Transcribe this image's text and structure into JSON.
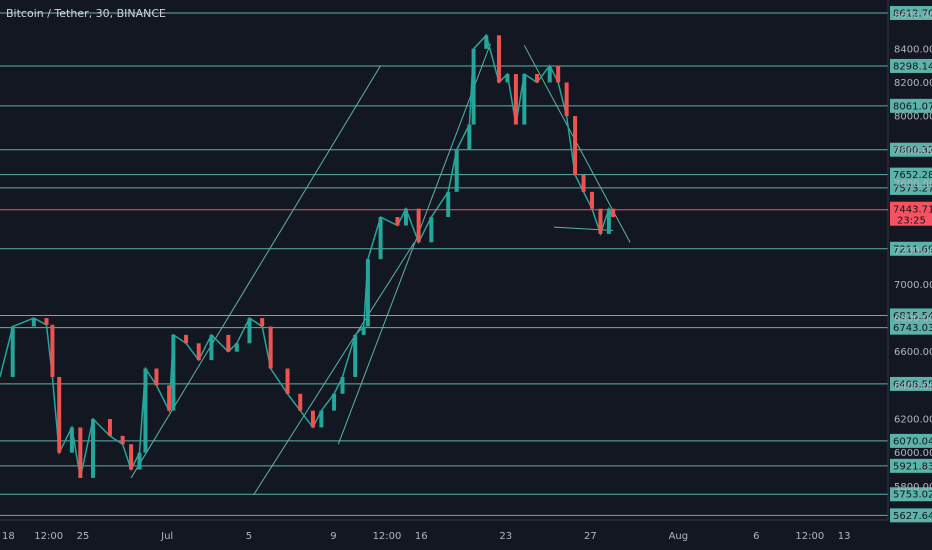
{
  "chart_data": {
    "type": "candlestick",
    "title": "Bitcoin / Tether, 30, BINANCE",
    "current_price": "7443.71",
    "countdown": "23:25",
    "x_ticks": [
      {
        "label": "18",
        "x": 0
      },
      {
        "label": "12:00",
        "x": 0.5
      },
      {
        "label": "25",
        "x": 1
      },
      {
        "label": "Jul",
        "x": 2
      },
      {
        "label": "5",
        "x": 3
      },
      {
        "label": "9",
        "x": 4
      },
      {
        "label": "12:00",
        "x": 4.5
      },
      {
        "label": "16",
        "x": 5
      },
      {
        "label": "23",
        "x": 6
      },
      {
        "label": "27",
        "x": 7
      },
      {
        "label": "Aug",
        "x": 8
      },
      {
        "label": "6",
        "x": 9
      },
      {
        "label": "12:00",
        "x": 9.5
      },
      {
        "label": "13",
        "x": 10
      }
    ],
    "y_ticks": [
      5800,
      6000,
      6200,
      6400,
      6600,
      6800,
      7000,
      7200,
      7400,
      7600,
      7800,
      8000,
      8200,
      8400,
      8600
    ],
    "y_tick_labels": [
      "5800.00",
      "6000.00",
      "6200.00",
      "6400.00",
      "6600.00",
      "6800.00",
      "7000.00",
      "7200.00",
      "7400.00",
      "7600.00",
      "7800.00",
      "8000.00",
      "8200.00",
      "8400.00",
      "8600.00"
    ],
    "horizontal_levels": [
      {
        "value": 8612.7,
        "label": "8612.70"
      },
      {
        "value": 8298.14,
        "label": "8298.14"
      },
      {
        "value": 8061.07,
        "label": "8061.07"
      },
      {
        "value": 7800.32,
        "label": "7800.32"
      },
      {
        "value": 7652.28,
        "label": "7652.28"
      },
      {
        "value": 7573.27,
        "label": "7573.27"
      },
      {
        "value": 7211.69,
        "label": "7211.69"
      },
      {
        "value": 6815.54,
        "label": "6815.54"
      },
      {
        "value": 6743.03,
        "label": "6743.03"
      },
      {
        "value": 6408.55,
        "label": "6408.55"
      },
      {
        "value": 6070.04,
        "label": "6070.04"
      },
      {
        "value": 5921.83,
        "label": "5921.83"
      },
      {
        "value": 5753.02,
        "label": "5753.02"
      },
      {
        "value": 5627.64,
        "label": "5627.64"
      }
    ],
    "price_path": [
      [
        0,
        6450
      ],
      [
        0.15,
        6750
      ],
      [
        0.4,
        6800
      ],
      [
        0.55,
        6760
      ],
      [
        0.62,
        6450
      ],
      [
        0.7,
        6000
      ],
      [
        0.85,
        6150
      ],
      [
        0.95,
        5850
      ],
      [
        1.1,
        6200
      ],
      [
        1.3,
        6100
      ],
      [
        1.45,
        6050
      ],
      [
        1.55,
        5900
      ],
      [
        1.65,
        6000
      ],
      [
        1.72,
        6500
      ],
      [
        1.85,
        6400
      ],
      [
        2.0,
        6250
      ],
      [
        2.05,
        6700
      ],
      [
        2.2,
        6650
      ],
      [
        2.35,
        6550
      ],
      [
        2.5,
        6700
      ],
      [
        2.7,
        6600
      ],
      [
        2.8,
        6650
      ],
      [
        2.95,
        6800
      ],
      [
        3.1,
        6750
      ],
      [
        3.2,
        6500
      ],
      [
        3.4,
        6350
      ],
      [
        3.55,
        6250
      ],
      [
        3.7,
        6150
      ],
      [
        3.8,
        6250
      ],
      [
        3.95,
        6350
      ],
      [
        4.05,
        6450
      ],
      [
        4.2,
        6700
      ],
      [
        4.3,
        6750
      ],
      [
        4.35,
        7150
      ],
      [
        4.5,
        7400
      ],
      [
        4.7,
        7350
      ],
      [
        4.8,
        7450
      ],
      [
        4.95,
        7250
      ],
      [
        5.1,
        7400
      ],
      [
        5.3,
        7550
      ],
      [
        5.4,
        7800
      ],
      [
        5.55,
        7950
      ],
      [
        5.6,
        8400
      ],
      [
        5.75,
        8480
      ],
      [
        5.9,
        8200
      ],
      [
        6.0,
        8250
      ],
      [
        6.1,
        7950
      ],
      [
        6.2,
        8250
      ],
      [
        6.35,
        8200
      ],
      [
        6.5,
        8300
      ],
      [
        6.6,
        8200
      ],
      [
        6.7,
        8000
      ],
      [
        6.8,
        7650
      ],
      [
        6.9,
        7550
      ],
      [
        7.0,
        7450
      ],
      [
        7.1,
        7300
      ],
      [
        7.2,
        7450
      ],
      [
        7.25,
        7400
      ]
    ],
    "trend_lines": [
      [
        [
          6.55,
          7340
        ],
        [
          7.25,
          7320
        ]
      ],
      [
        [
          3.0,
          5750
        ],
        [
          4.9,
          7250
        ]
      ],
      [
        [
          4.0,
          6050
        ],
        [
          5.8,
          8430
        ]
      ],
      [
        [
          6.2,
          8420
        ],
        [
          7.45,
          7250
        ]
      ],
      [
        [
          1.55,
          5850
        ],
        [
          4.5,
          8300
        ]
      ]
    ]
  }
}
